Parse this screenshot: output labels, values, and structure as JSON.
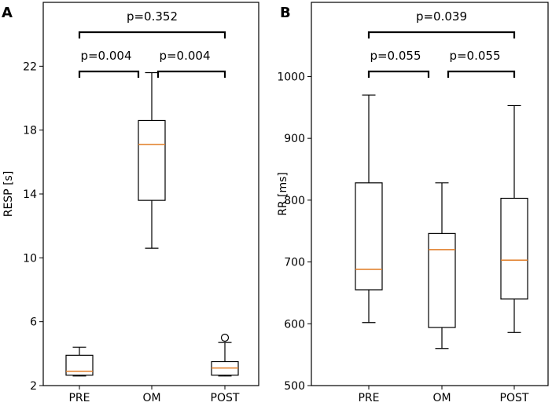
{
  "chart_data": [
    {
      "type": "box",
      "panel_label": "A",
      "ylabel": "RESP [s]",
      "xlabel": "",
      "categories": [
        "PRE",
        "OM",
        "POST"
      ],
      "ylim": [
        2,
        26
      ],
      "yticks": [
        2,
        6,
        10,
        14,
        18,
        22
      ],
      "ytick_labels": [
        "2",
        "6",
        "10",
        "14",
        "18",
        "22"
      ],
      "boxes": [
        {
          "name": "PRE",
          "whislo": 2.6,
          "q1": 2.65,
          "med": 2.9,
          "q3": 3.9,
          "whishi": 4.4,
          "fliers": []
        },
        {
          "name": "OM",
          "whislo": 10.6,
          "q1": 13.6,
          "med": 17.1,
          "q3": 18.6,
          "whishi": 21.6,
          "fliers": []
        },
        {
          "name": "POST",
          "whislo": 2.6,
          "q1": 2.65,
          "med": 3.1,
          "q3": 3.5,
          "whishi": 4.7,
          "fliers": [
            5.0
          ]
        }
      ],
      "comparisons": [
        {
          "from": "PRE",
          "to": "POST",
          "label": "p=0.352",
          "level": 2
        },
        {
          "from": "PRE",
          "to": "OM",
          "label": "p=0.004",
          "level": 1
        },
        {
          "from": "OM",
          "to": "POST",
          "label": "p=0.004",
          "level": 1
        }
      ]
    },
    {
      "type": "box",
      "panel_label": "B",
      "ylabel": "RR [ms]",
      "xlabel": "",
      "categories": [
        "PRE",
        "OM",
        "POST"
      ],
      "ylim": [
        500,
        1120
      ],
      "yticks": [
        500,
        600,
        700,
        800,
        900,
        1000
      ],
      "ytick_labels": [
        "500",
        "600",
        "700",
        "800",
        "900",
        "1000"
      ],
      "boxes": [
        {
          "name": "PRE",
          "whislo": 602,
          "q1": 655,
          "med": 688,
          "q3": 828,
          "whishi": 970,
          "fliers": []
        },
        {
          "name": "OM",
          "whislo": 560,
          "q1": 594,
          "med": 720,
          "q3": 746,
          "whishi": 828,
          "fliers": []
        },
        {
          "name": "POST",
          "whislo": 586,
          "q1": 640,
          "med": 703,
          "q3": 803,
          "whishi": 953,
          "fliers": []
        }
      ],
      "comparisons": [
        {
          "from": "PRE",
          "to": "POST",
          "label": "p=0.039",
          "level": 2
        },
        {
          "from": "PRE",
          "to": "OM",
          "label": "p=0.055",
          "level": 1
        },
        {
          "from": "OM",
          "to": "POST",
          "label": "p=0.055",
          "level": 1
        }
      ]
    }
  ],
  "colors": {
    "median": "#e07b24",
    "box": "#000000",
    "background": "#ffffff"
  }
}
